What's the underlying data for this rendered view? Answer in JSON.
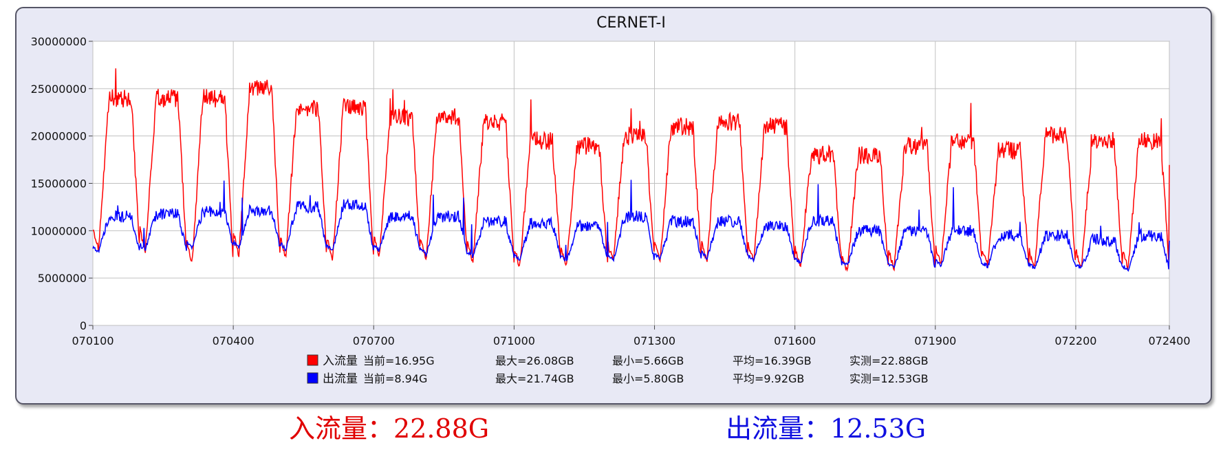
{
  "chart_data": {
    "type": "line",
    "title": "CERNET-I",
    "xlabel": "",
    "ylabel": "",
    "x_ticks": [
      "070100",
      "070400",
      "070700",
      "071000",
      "071300",
      "071600",
      "071900",
      "072200",
      "072400"
    ],
    "y_ticks": [
      "0",
      "5000000",
      "10000000",
      "15000000",
      "20000000",
      "25000000",
      "30000000"
    ],
    "ylim": [
      0,
      30000000
    ],
    "grid": true,
    "days": 23,
    "series": [
      {
        "name": "入流量",
        "color": "#ff0000",
        "day_peaks": [
          24000000,
          24000000,
          24000000,
          25000000,
          23000000,
          23000000,
          22000000,
          22000000,
          21500000,
          19500000,
          19000000,
          20000000,
          21000000,
          21500000,
          21000000,
          18000000,
          18000000,
          19000000,
          19500000,
          18500000,
          20000000,
          19500000,
          19500000
        ],
        "day_troughs": [
          8000000,
          7800000,
          6500000,
          7200000,
          7000000,
          6800000,
          7300000,
          6900000,
          6500000,
          6200000,
          6300000,
          6700000,
          6600000,
          6600000,
          6600000,
          6400000,
          5700000,
          6000000,
          6300000,
          6300000,
          5900000,
          6000000,
          6000000
        ],
        "max": 26080000,
        "end": 16950000
      },
      {
        "name": "出流量",
        "color": "#0000ff",
        "day_peaks": [
          11500000,
          11800000,
          12000000,
          12100000,
          12500000,
          12700000,
          11500000,
          11500000,
          11000000,
          10800000,
          10500000,
          11500000,
          11000000,
          11000000,
          10500000,
          11000000,
          10000000,
          10000000,
          10000000,
          9500000,
          9500000,
          9000000,
          9500000
        ],
        "day_troughs": [
          7800000,
          8000000,
          8200000,
          8200000,
          8000000,
          7800000,
          7900000,
          7500000,
          7200000,
          7000000,
          6800000,
          6800000,
          7000000,
          7100000,
          6800000,
          6500000,
          6300000,
          6000000,
          6300000,
          6200000,
          6000000,
          6000000,
          5800000
        ],
        "max": 21740000,
        "end": 8940000
      }
    ],
    "legend": [
      {
        "color": "#ff0000",
        "name": "入流量",
        "current": "当前=16.95G",
        "max": "最大=26.08GB",
        "min": "最小=5.66GB",
        "avg": "平均=16.39GB",
        "measured": "实测=22.88GB"
      },
      {
        "color": "#0000ff",
        "name": "出流量",
        "current": "当前=8.94G",
        "max": "最大=21.74GB",
        "min": "最小=5.80GB",
        "avg": "平均=9.92GB",
        "measured": "实测=12.53GB"
      }
    ]
  },
  "summary": {
    "inbound": "入流量：22.88G",
    "outbound": "出流量：12.53G"
  }
}
